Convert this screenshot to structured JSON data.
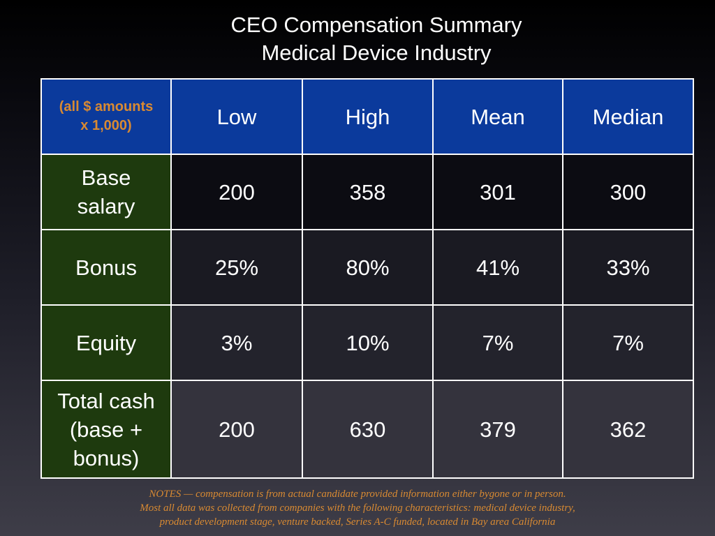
{
  "title": {
    "line1": "CEO Compensation Summary",
    "line2": "Medical Device Industry"
  },
  "table": {
    "corner_line1": "(all $ amounts",
    "corner_line2": "x  1,000)",
    "columns": [
      "Low",
      "High",
      "Mean",
      "Median"
    ],
    "rows": [
      {
        "label_lines": [
          "Base",
          "salary"
        ],
        "values": [
          "200",
          "358",
          "301",
          "300"
        ]
      },
      {
        "label_lines": [
          "Bonus"
        ],
        "values": [
          "25%",
          "80%",
          "41%",
          "33%"
        ]
      },
      {
        "label_lines": [
          "Equity"
        ],
        "values": [
          "3%",
          "10%",
          "7%",
          "7%"
        ]
      },
      {
        "label_lines": [
          "Total cash",
          "(base +",
          "bonus)"
        ],
        "values": [
          "200",
          "630",
          "379",
          "362"
        ]
      }
    ]
  },
  "notes": {
    "line1": "NOTES — compensation is from actual candidate provided information either bygone or in person.",
    "line2": "Most all data was collected from companies with the following characteristics: medical device industry,",
    "line3": "product development stage, venture backed, Series A-C funded, located in Bay area California"
  },
  "colors": {
    "header_blue": "#0b3a9c",
    "label_green": "#1e3a0e",
    "accent_orange": "#d98a32"
  }
}
